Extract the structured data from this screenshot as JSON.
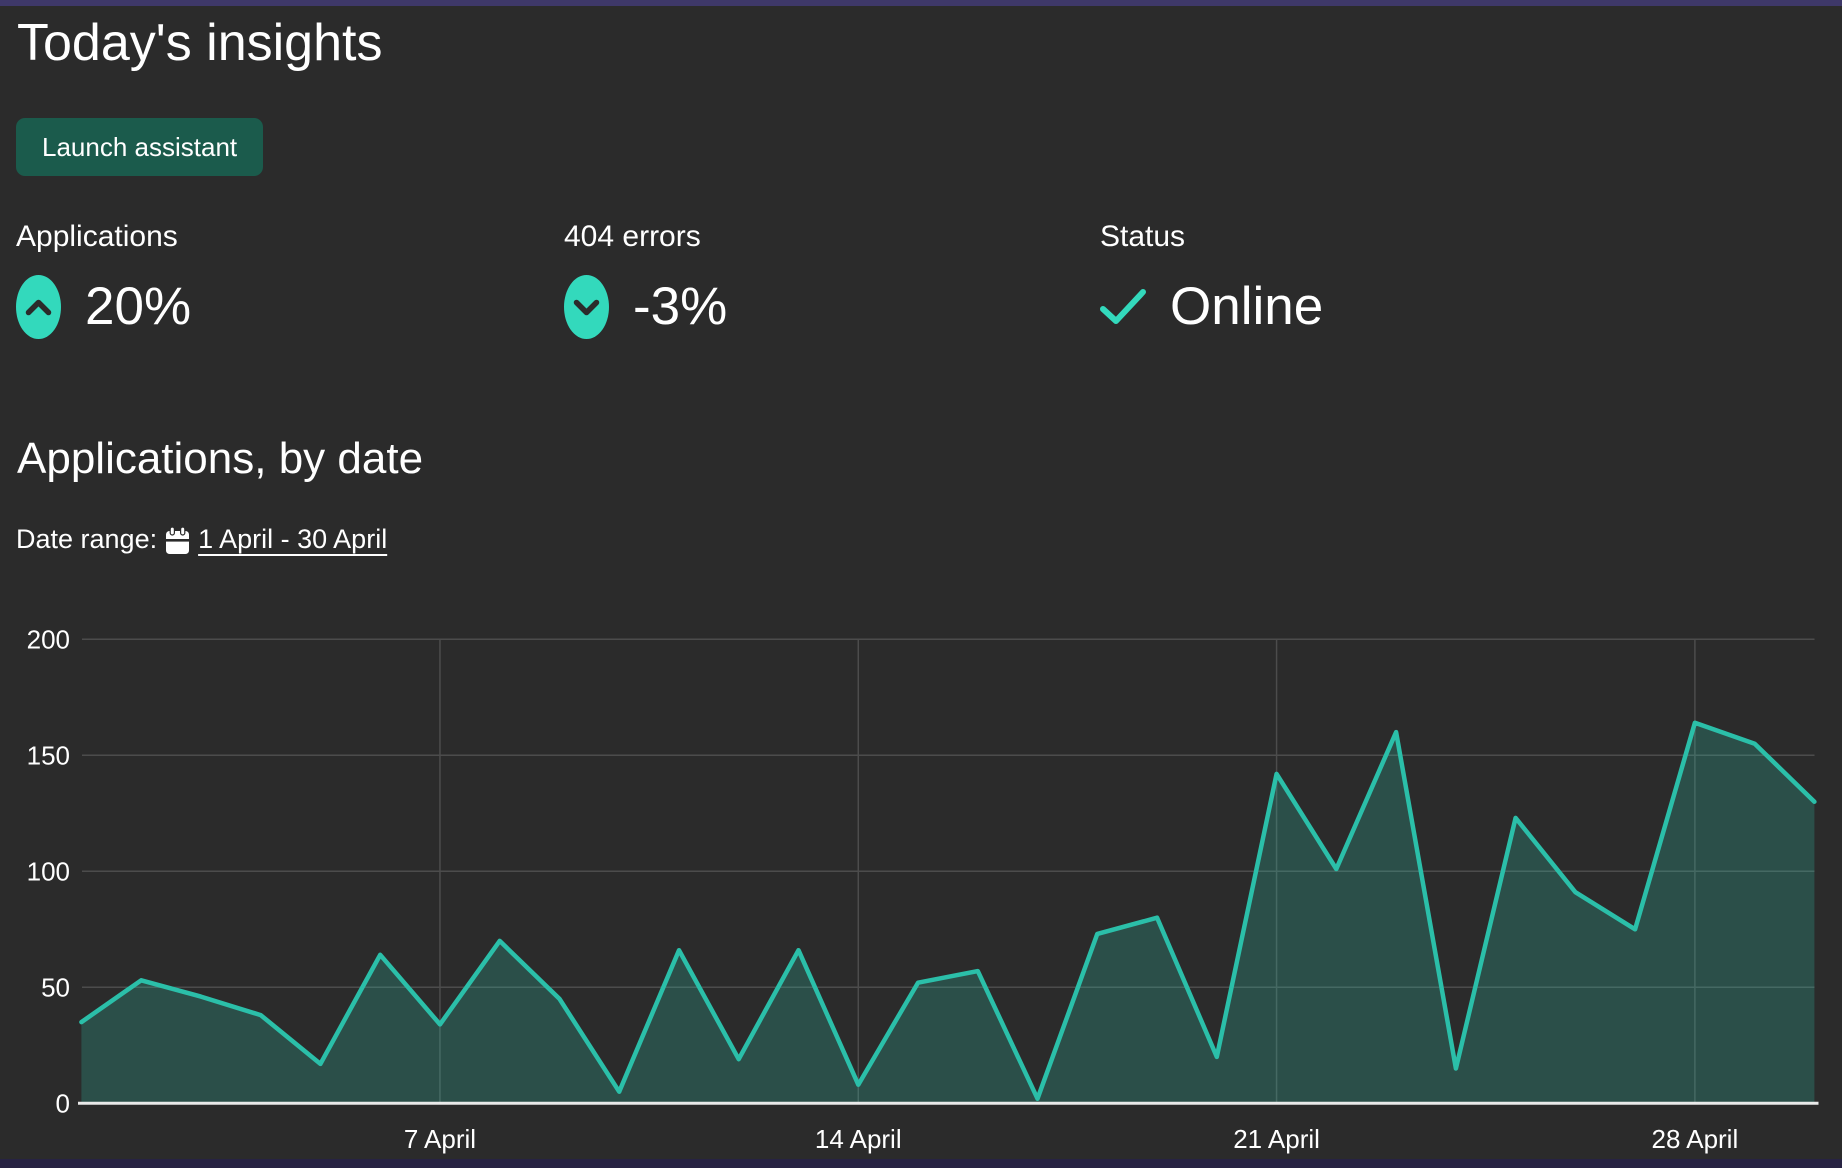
{
  "page": {
    "title": "Today's insights"
  },
  "assistant_button": {
    "label": "Launch assistant"
  },
  "stats": [
    {
      "label": "Applications",
      "value": "20%",
      "icon": "chevron-up-circle"
    },
    {
      "label": "404 errors",
      "value": "-3%",
      "icon": "chevron-down-circle"
    },
    {
      "label": "Status",
      "value": "Online",
      "icon": "check"
    }
  ],
  "section": {
    "title": "Applications, by date",
    "date_range_label": "Date range:",
    "date_range_value": "1 April - 30 April"
  },
  "colors": {
    "background": "#2b2b2b",
    "top_bar": "#3e3869",
    "bottom_bar": "#272343",
    "accent": "#33d9bc",
    "button_bg": "#1b5b4c",
    "chart_line": "#2bbfa9",
    "chart_fill": "rgba(45,211,183,0.22)",
    "grid": "#4c4c4c",
    "axis": "#eaeaea"
  },
  "chart_data": {
    "type": "area",
    "title": "Applications, by date",
    "xlabel": "",
    "ylabel": "",
    "x_unit": "day of April",
    "x": [
      1,
      2,
      3,
      4,
      5,
      6,
      7,
      8,
      9,
      10,
      11,
      12,
      13,
      14,
      15,
      16,
      17,
      18,
      19,
      20,
      21,
      22,
      23,
      24,
      25,
      26,
      27,
      28,
      29,
      30
    ],
    "values": [
      35,
      53,
      46,
      38,
      17,
      64,
      34,
      70,
      45,
      5,
      66,
      19,
      66,
      8,
      52,
      57,
      2,
      73,
      80,
      20,
      142,
      101,
      160,
      15,
      123,
      91,
      75,
      164,
      155,
      130
    ],
    "ylim": [
      0,
      200
    ],
    "yticks": [
      0,
      50,
      100,
      150,
      200
    ],
    "xticks": [
      {
        "x": 7,
        "label": "7 April"
      },
      {
        "x": 14,
        "label": "14 April"
      },
      {
        "x": 21,
        "label": "21 April"
      },
      {
        "x": 28,
        "label": "28 April"
      }
    ],
    "grid": true,
    "legend": false,
    "line_color": "#2bbfa9",
    "fill_color": "rgba(45,211,183,0.22)",
    "grid_color": "#4c4c4c",
    "axis_color": "#eaeaea",
    "tick_color": "#ffffff"
  }
}
